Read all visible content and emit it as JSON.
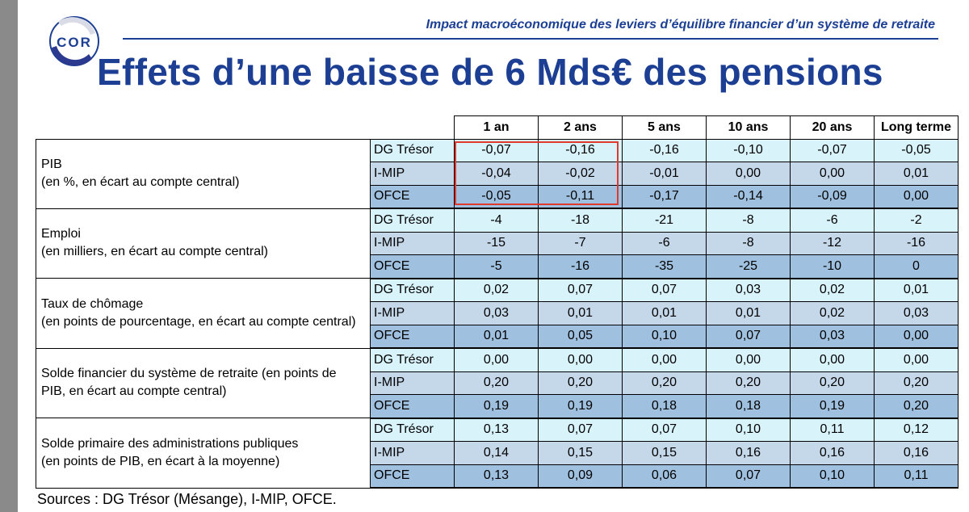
{
  "header": {
    "logo_text": "COR",
    "subtitle": "Impact macroéconomique des leviers d’équilibre financier d’un système de retraite",
    "title": "Effets d’une baisse de 6 Mds€ des pensions"
  },
  "table": {
    "columns": [
      "1 an",
      "2 ans",
      "5 ans",
      "10 ans",
      "20 ans",
      "Long terme"
    ],
    "groups": [
      {
        "label_lines": [
          "PIB",
          "(en %, en écart au compte central)"
        ],
        "rows": [
          {
            "model": "DG Trésor",
            "values": [
              "-0,07",
              "-0,16",
              "-0,16",
              "-0,10",
              "-0,07",
              "-0,05"
            ]
          },
          {
            "model": "I-MIP",
            "values": [
              "-0,04",
              "-0,02",
              "-0,01",
              "0,00",
              "0,00",
              "0,01"
            ]
          },
          {
            "model": "OFCE",
            "values": [
              "-0,05",
              "-0,11",
              "-0,17",
              "-0,14",
              "-0,09",
              "0,00"
            ]
          }
        ]
      },
      {
        "label_lines": [
          "Emploi",
          "(en milliers, en écart au compte central)"
        ],
        "rows": [
          {
            "model": "DG Trésor",
            "values": [
              "-4",
              "-18",
              "-21",
              "-8",
              "-6",
              "-2"
            ]
          },
          {
            "model": "I-MIP",
            "values": [
              "-15",
              "-7",
              "-6",
              "-8",
              "-12",
              "-16"
            ]
          },
          {
            "model": "OFCE",
            "values": [
              "-5",
              "-16",
              "-35",
              "-25",
              "-10",
              "0"
            ]
          }
        ]
      },
      {
        "label_lines": [
          "Taux de chômage",
          "(en points de pourcentage, en écart au compte central)"
        ],
        "rows": [
          {
            "model": "DG Trésor",
            "values": [
              "0,02",
              "0,07",
              "0,07",
              "0,03",
              "0,02",
              "0,01"
            ]
          },
          {
            "model": "I-MIP",
            "values": [
              "0,03",
              "0,01",
              "0,01",
              "0,01",
              "0,02",
              "0,03"
            ]
          },
          {
            "model": "OFCE",
            "values": [
              "0,01",
              "0,05",
              "0,10",
              "0,07",
              "0,03",
              "0,00"
            ]
          }
        ]
      },
      {
        "label_lines": [
          "Solde financier du système de retraite (en points de",
          "PIB, en écart au compte central)"
        ],
        "rows": [
          {
            "model": "DG Trésor",
            "values": [
              "0,00",
              "0,00",
              "0,00",
              "0,00",
              "0,00",
              "0,00"
            ]
          },
          {
            "model": "I-MIP",
            "values": [
              "0,20",
              "0,20",
              "0,20",
              "0,20",
              "0,20",
              "0,20"
            ]
          },
          {
            "model": "OFCE",
            "values": [
              "0,19",
              "0,19",
              "0,18",
              "0,18",
              "0,19",
              "0,20"
            ]
          }
        ]
      },
      {
        "label_lines": [
          "Solde primaire des administrations publiques",
          "(en points de PIB, en écart à la moyenne)"
        ],
        "rows": [
          {
            "model": "DG Trésor",
            "values": [
              "0,13",
              "0,07",
              "0,07",
              "0,10",
              "0,11",
              "0,12"
            ]
          },
          {
            "model": "I-MIP",
            "values": [
              "0,14",
              "0,15",
              "0,15",
              "0,16",
              "0,16",
              "0,16"
            ]
          },
          {
            "model": "OFCE",
            "values": [
              "0,13",
              "0,09",
              "0,06",
              "0,07",
              "0,10",
              "0,11"
            ]
          }
        ]
      }
    ]
  },
  "footer": {
    "sources": "Sources : DG Trésor (Mésange), I-MIP, OFCE."
  },
  "colors": {
    "brand_blue": "#1c3f94",
    "highlight_red": "#e03a2f",
    "row_light": "#d9f3fb",
    "row_mid": "#c5d8ea",
    "row_dark": "#9fc1df"
  }
}
